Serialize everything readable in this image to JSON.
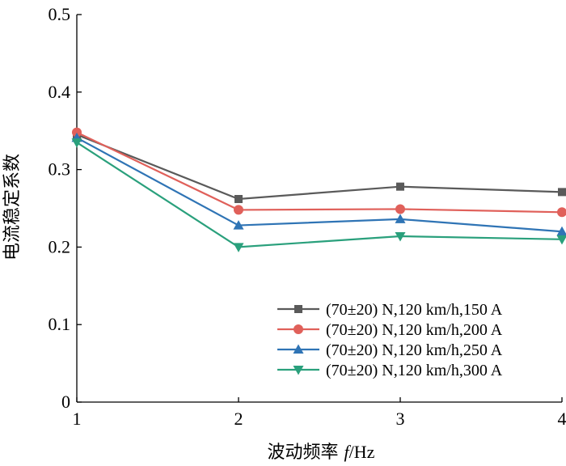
{
  "chart_data": {
    "type": "line",
    "title": "",
    "xlabel": "波动频率 f/Hz",
    "xlabel_prefix": "波动频率 ",
    "xlabel_var": "f",
    "xlabel_unit": "/Hz",
    "ylabel": "电流稳定系数",
    "x": [
      1,
      2,
      3,
      4
    ],
    "x_ticks": [
      "1",
      "2",
      "3",
      "4"
    ],
    "xlim": [
      1,
      4
    ],
    "ylim": [
      0,
      0.5
    ],
    "y_ticks": [
      0,
      0.1,
      0.2,
      0.3,
      0.4,
      0.5
    ],
    "y_tick_labels": [
      "0",
      "0.1",
      "0.2",
      "0.3",
      "0.4",
      "0.5"
    ],
    "grid": false,
    "legend_position": "bottom-right",
    "series": [
      {
        "name": "(70±20) N,120 km/h,150 A",
        "color": "#5a5a5a",
        "marker": "square",
        "values": [
          0.345,
          0.262,
          0.278,
          0.271
        ]
      },
      {
        "name": "(70±20) N,120 km/h,200 A",
        "color": "#e0605a",
        "marker": "circle",
        "values": [
          0.348,
          0.248,
          0.249,
          0.245
        ]
      },
      {
        "name": "(70±20) N,120 km/h,250 A",
        "color": "#2f74b5",
        "marker": "triangle-up",
        "values": [
          0.341,
          0.228,
          0.236,
          0.22
        ]
      },
      {
        "name": "(70±20) N,120 km/h,300 A",
        "color": "#2aa07c",
        "marker": "triangle-down",
        "values": [
          0.335,
          0.2,
          0.214,
          0.21
        ]
      }
    ]
  }
}
